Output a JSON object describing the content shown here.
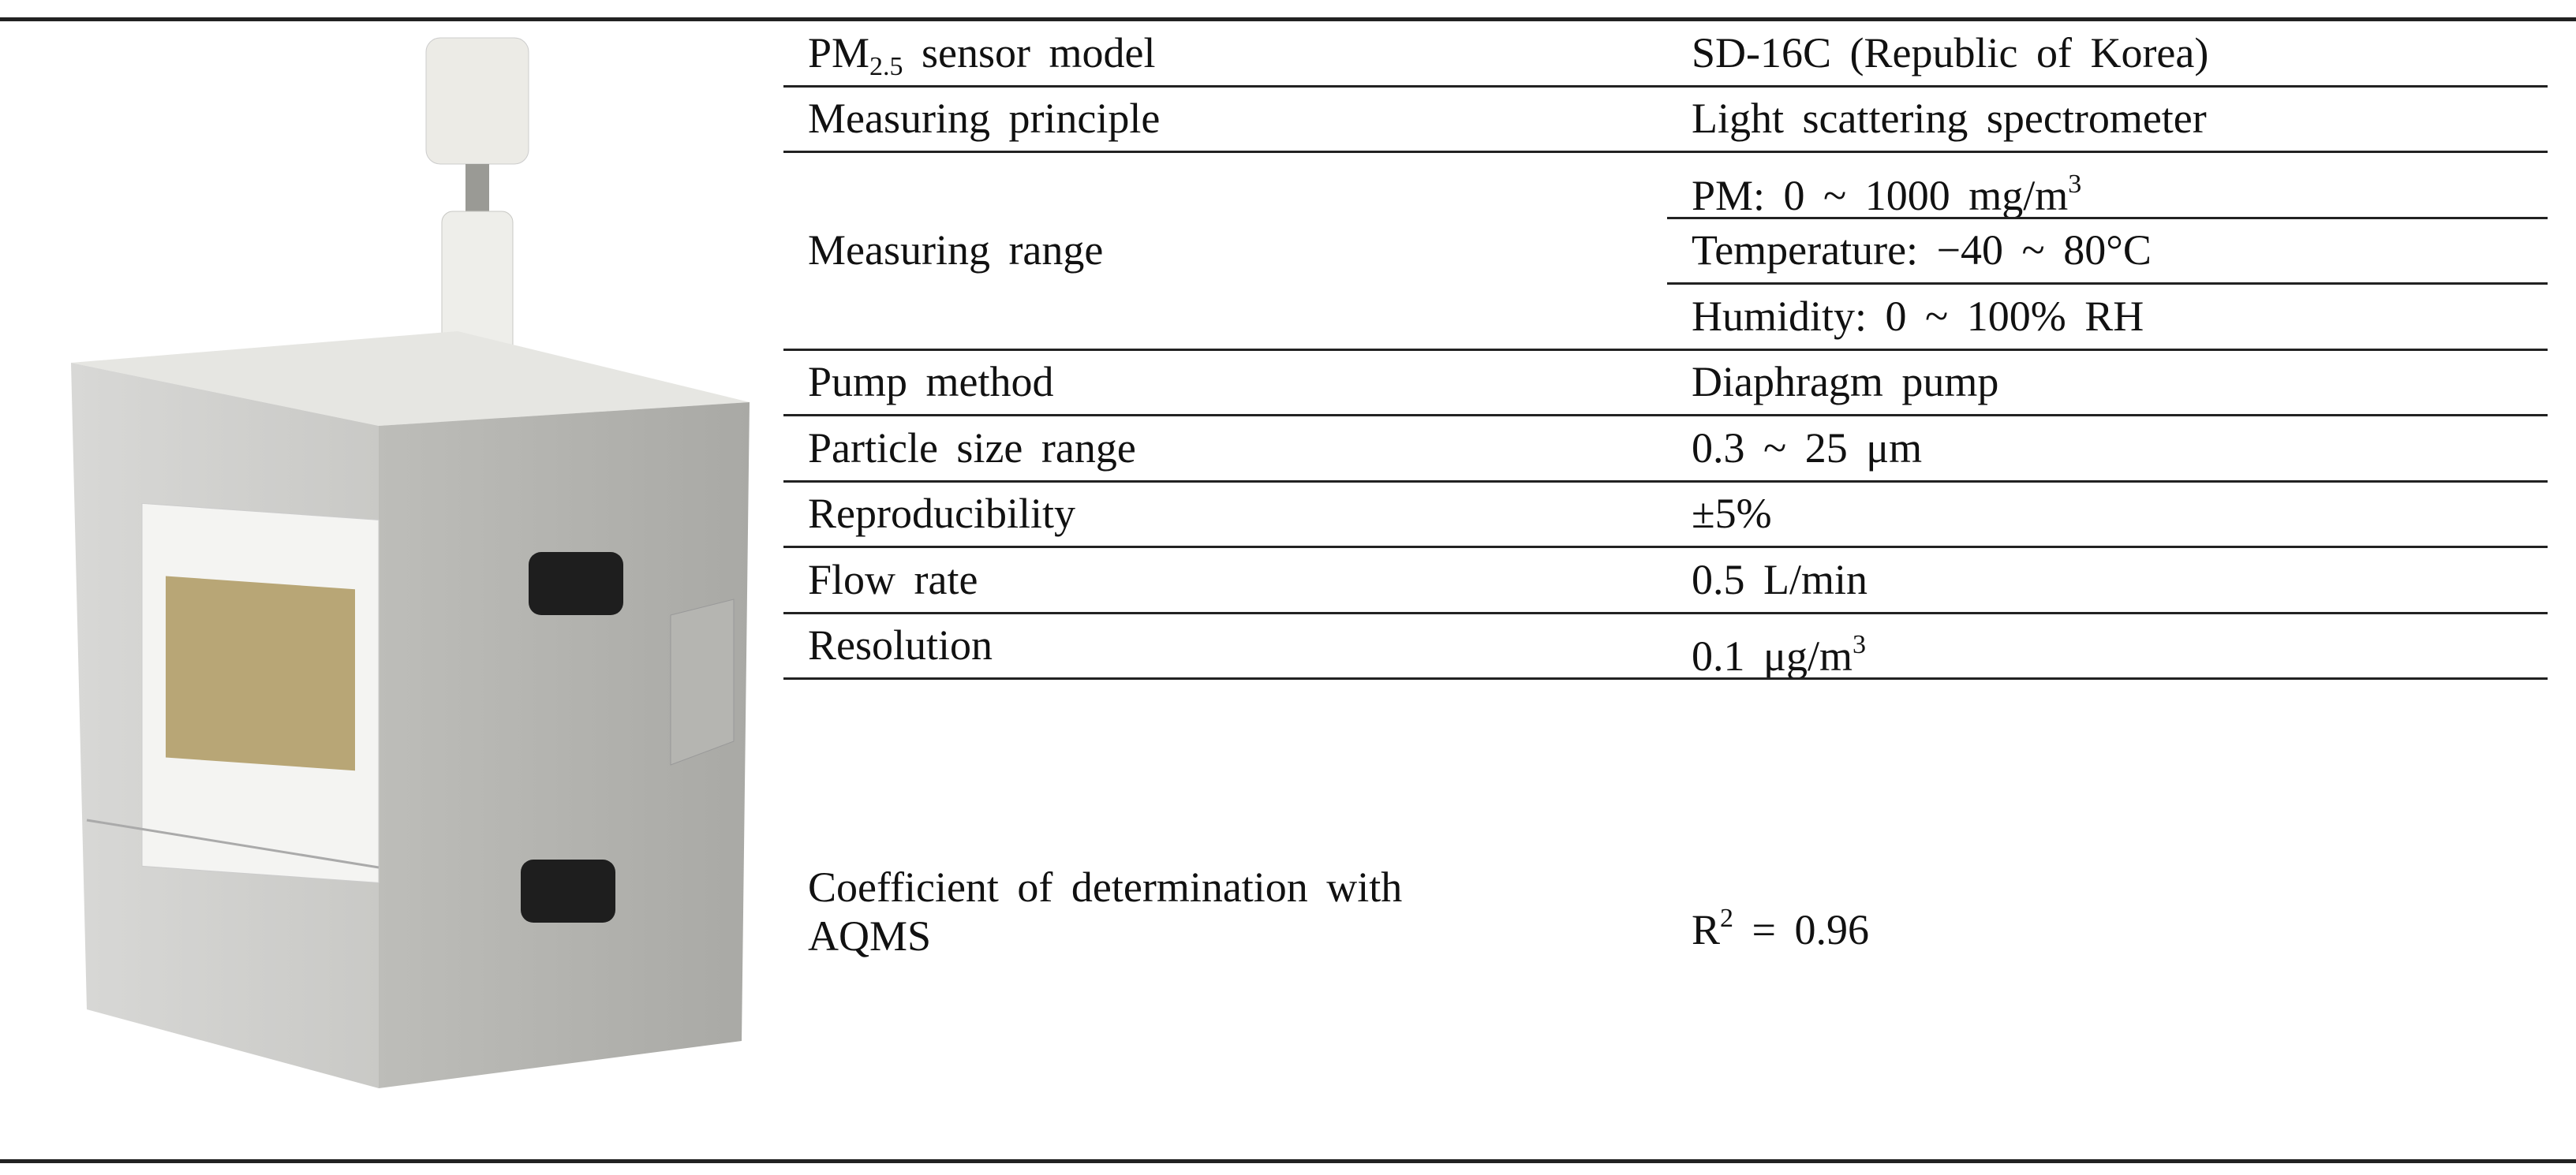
{
  "table": {
    "rows": [
      {
        "label": [
          {
            "text": "PM"
          },
          {
            "text": "2.5",
            "style": "sub"
          },
          {
            "text": " sensor model"
          }
        ],
        "values": [
          [
            {
              "text": "SD-16C (Republic of Korea)"
            }
          ]
        ]
      },
      {
        "label": [
          {
            "text": "Measuring principle"
          }
        ],
        "values": [
          [
            {
              "text": "Light scattering spectrometer"
            }
          ]
        ]
      },
      {
        "label": [
          {
            "text": "Measuring range"
          }
        ],
        "values": [
          [
            {
              "text": "PM: 0 ~ 1000 mg/m"
            },
            {
              "text": "3",
              "style": "sup"
            }
          ],
          [
            {
              "text": "Temperature: −40 ~ 80°C"
            }
          ],
          [
            {
              "text": "Humidity: 0 ~ 100% RH"
            }
          ]
        ]
      },
      {
        "label": [
          {
            "text": "Pump method"
          }
        ],
        "values": [
          [
            {
              "text": "Diaphragm pump"
            }
          ]
        ]
      },
      {
        "label": [
          {
            "text": "Particle size range"
          }
        ],
        "values": [
          [
            {
              "text": "0.3 ~ 25 μm"
            }
          ]
        ]
      },
      {
        "label": [
          {
            "text": "Reproducibility"
          }
        ],
        "values": [
          [
            {
              "text": "±5%"
            }
          ]
        ]
      },
      {
        "label": [
          {
            "text": "Flow rate"
          }
        ],
        "values": [
          [
            {
              "text": "0.5 L/min"
            }
          ]
        ]
      },
      {
        "label": [
          {
            "text": "Resolution"
          }
        ],
        "values": [
          [
            {
              "text": "0.1 μg/m"
            },
            {
              "text": "3",
              "style": "sup"
            }
          ]
        ]
      },
      {
        "label": [
          {
            "text": "Coefficient of determination with AQMS"
          }
        ],
        "values": [
          [
            {
              "text": "R"
            },
            {
              "text": "2",
              "style": "sup"
            },
            {
              "text": " = 0.96"
            }
          ]
        ]
      }
    ]
  }
}
